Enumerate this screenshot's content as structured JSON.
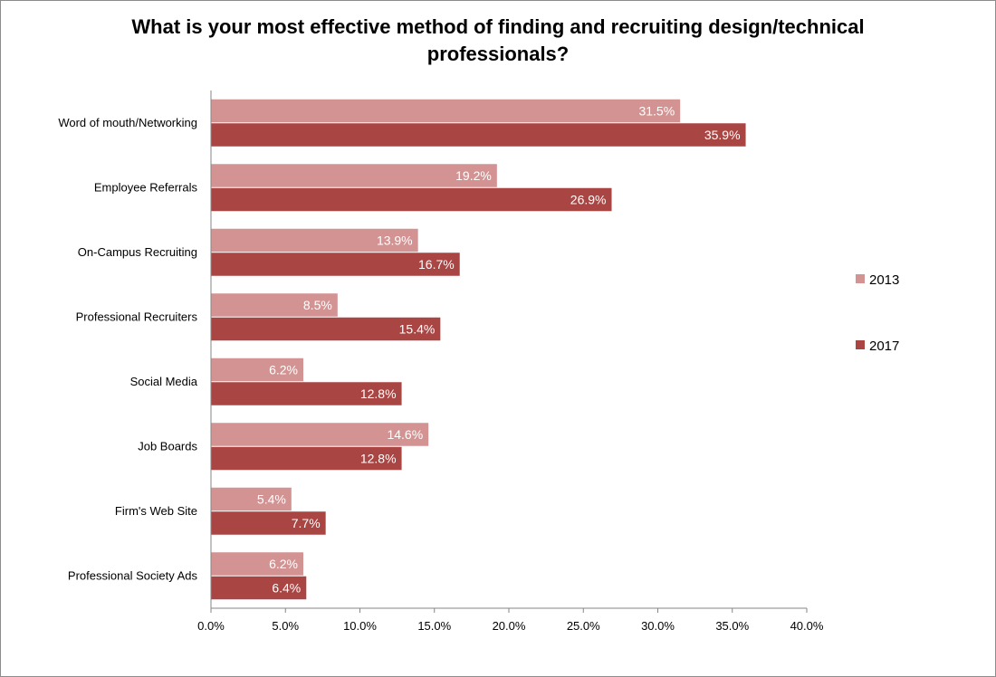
{
  "chart_data": {
    "type": "bar",
    "orientation": "horizontal",
    "title_lines": [
      "What is your most effective method of finding and recruiting design/technical",
      "professionals?"
    ],
    "categories": [
      "Word of mouth/Networking",
      "Employee Referrals",
      "On-Campus Recruiting",
      "Professional Recruiters",
      "Social Media",
      "Job Boards",
      "Firm's Web Site",
      "Professional Society Ads"
    ],
    "series": [
      {
        "name": "2013",
        "color": "#d39393",
        "values": [
          31.5,
          19.2,
          13.9,
          8.5,
          6.2,
          14.6,
          5.4,
          6.2
        ],
        "labels": [
          "31.5%",
          "19.2%",
          "13.9%",
          "8.5%",
          "6.2%",
          "14.6%",
          "5.4%",
          "6.2%"
        ]
      },
      {
        "name": "2017",
        "color": "#a94543",
        "values": [
          35.9,
          26.9,
          16.7,
          15.4,
          12.8,
          12.8,
          7.7,
          6.4
        ],
        "labels": [
          "35.9%",
          "26.9%",
          "16.7%",
          "15.4%",
          "12.8%",
          "12.8%",
          "7.7%",
          "6.4%"
        ]
      }
    ],
    "xlim": [
      0,
      40
    ],
    "xticks": [
      "0.0%",
      "5.0%",
      "10.0%",
      "15.0%",
      "20.0%",
      "25.0%",
      "30.0%",
      "35.0%",
      "40.0%"
    ],
    "grid": false,
    "legend_position": "right"
  }
}
